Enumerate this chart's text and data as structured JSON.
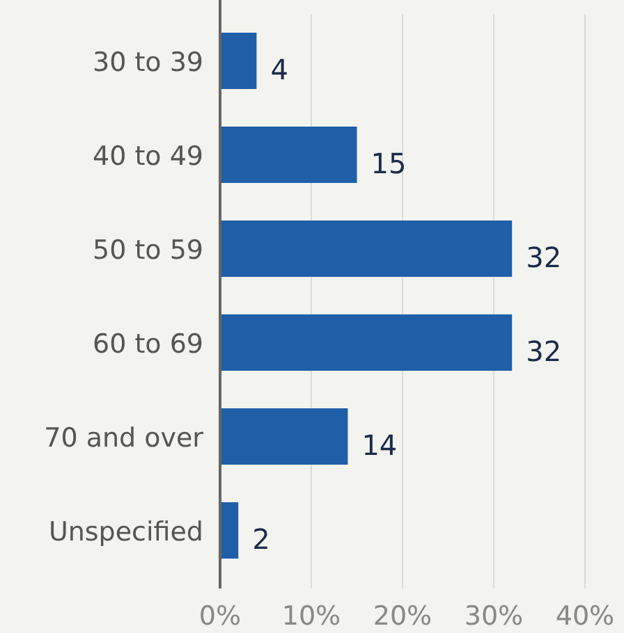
{
  "chart_data": {
    "type": "bar",
    "orientation": "horizontal",
    "categories": [
      "30 to 39",
      "40 to 49",
      "50 to 59",
      "60 to 69",
      "70 and over",
      "Unspecified"
    ],
    "values": [
      4,
      15,
      32,
      32,
      14,
      2
    ],
    "color": "#1f5fa8",
    "data_labels": true,
    "grid": "x",
    "xlim": [
      0,
      40
    ],
    "xticks": [
      {
        "value": 0,
        "label": "0%"
      },
      {
        "value": 10,
        "label": "10%"
      },
      {
        "value": 20,
        "label": "20%"
      },
      {
        "value": 30,
        "label": "30%"
      },
      {
        "value": 40,
        "label": "40%"
      }
    ]
  }
}
